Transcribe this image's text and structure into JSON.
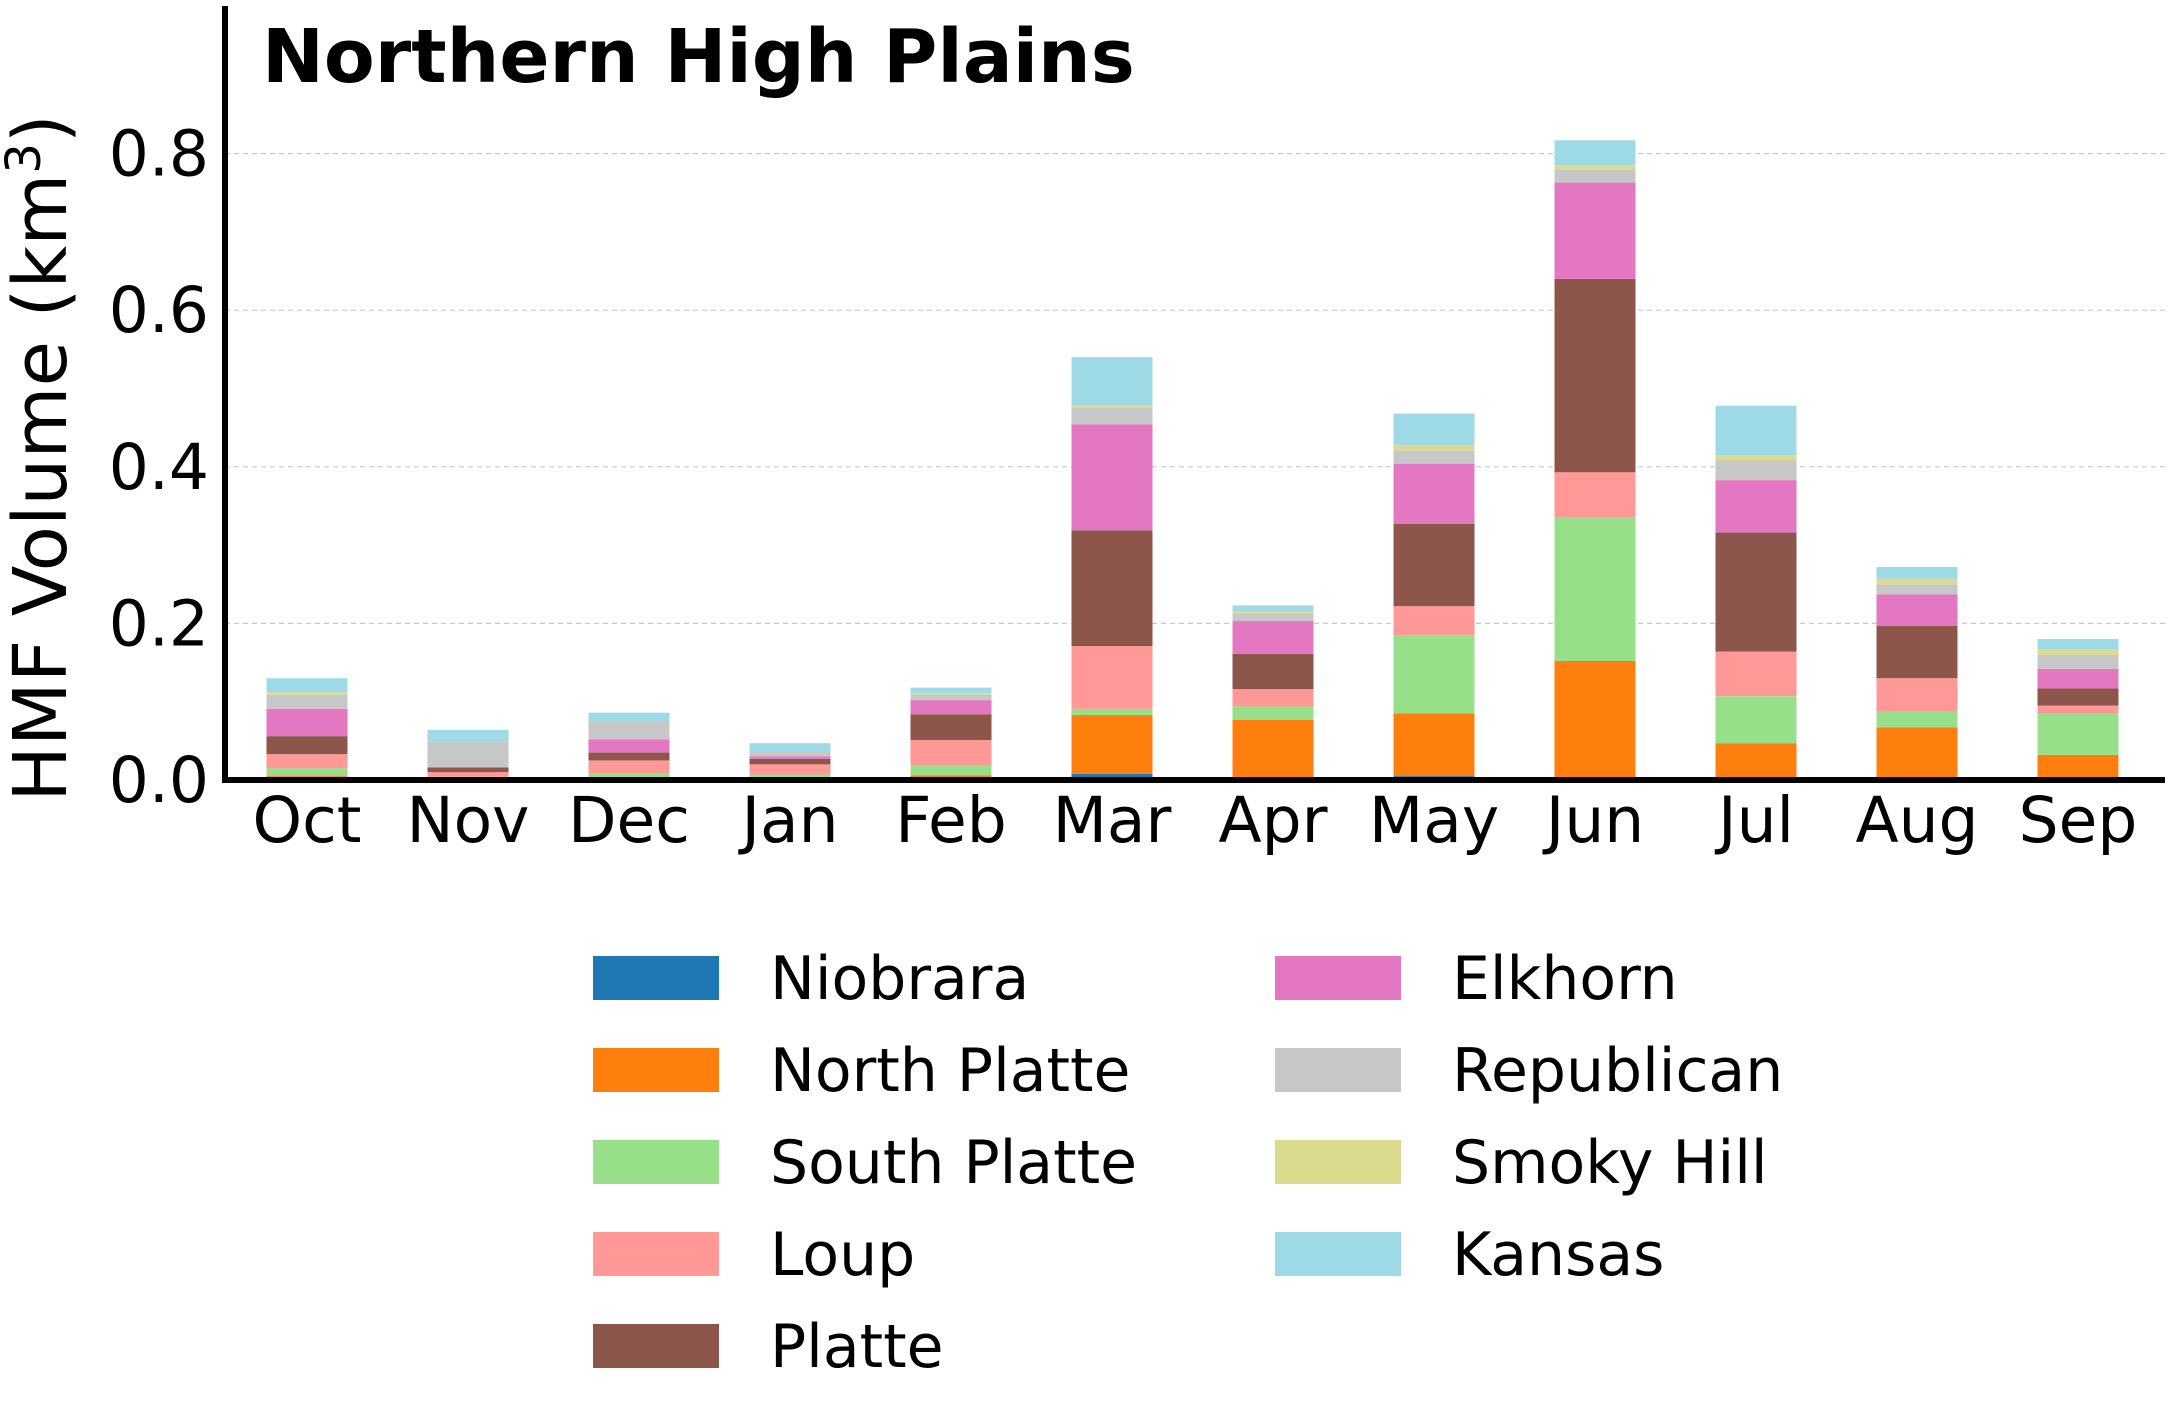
{
  "chart_data": {
    "type": "bar",
    "stacked": true,
    "title": "Northern High Plains",
    "xlabel": "",
    "ylabel": "HMF Volume (km",
    "ylabel_superscript": "3",
    "ylabel_suffix": ")",
    "ylim": [
      0,
      0.98
    ],
    "yticks": [
      "0.0",
      "0.2",
      "0.4",
      "0.6",
      "0.8"
    ],
    "ytick_values": [
      0,
      0.2,
      0.4,
      0.6,
      0.8
    ],
    "grid": "horizontal dashed",
    "legend_position": "bottom, two columns",
    "categories": [
      "Oct",
      "Nov",
      "Dec",
      "Jan",
      "Feb",
      "Mar",
      "Apr",
      "May",
      "Jun",
      "Jul",
      "Aug",
      "Sep"
    ],
    "series": [
      {
        "name": "Niobrara",
        "color": "#1f77b4",
        "values": [
          0.0,
          0.0,
          0.0,
          0.0,
          0.003,
          0.008,
          0.0,
          0.005,
          0.0,
          0.0,
          0.0,
          0.0
        ]
      },
      {
        "name": "North Platte",
        "color": "#ff7f0e",
        "values": [
          0.005,
          0.002,
          0.003,
          0.002,
          0.003,
          0.075,
          0.077,
          0.08,
          0.152,
          0.047,
          0.067,
          0.032
        ]
      },
      {
        "name": "South Platte",
        "color": "#98df8a",
        "values": [
          0.01,
          0.002,
          0.005,
          0.005,
          0.012,
          0.008,
          0.017,
          0.1,
          0.183,
          0.06,
          0.02,
          0.053
        ]
      },
      {
        "name": "Loup",
        "color": "#ff9896",
        "values": [
          0.018,
          0.006,
          0.017,
          0.013,
          0.033,
          0.08,
          0.022,
          0.037,
          0.058,
          0.057,
          0.043,
          0.01
        ]
      },
      {
        "name": "Platte",
        "color": "#8c564b",
        "values": [
          0.023,
          0.006,
          0.01,
          0.007,
          0.033,
          0.148,
          0.045,
          0.105,
          0.247,
          0.152,
          0.067,
          0.022
        ]
      },
      {
        "name": "Elkhorn",
        "color": "#e377c2",
        "values": [
          0.035,
          0.0,
          0.017,
          0.003,
          0.018,
          0.135,
          0.042,
          0.077,
          0.123,
          0.067,
          0.04,
          0.025
        ]
      },
      {
        "name": "Republican",
        "color": "#c7c7c7",
        "values": [
          0.018,
          0.033,
          0.022,
          0.007,
          0.007,
          0.022,
          0.01,
          0.017,
          0.017,
          0.025,
          0.013,
          0.018
        ]
      },
      {
        "name": "Smoky Hill",
        "color": "#dbdb8d",
        "values": [
          0.003,
          0.0,
          0.0,
          0.0,
          0.002,
          0.002,
          0.002,
          0.007,
          0.005,
          0.007,
          0.007,
          0.007
        ]
      },
      {
        "name": "Kansas",
        "color": "#9edae5",
        "values": [
          0.018,
          0.015,
          0.012,
          0.01,
          0.007,
          0.062,
          0.008,
          0.04,
          0.032,
          0.063,
          0.015,
          0.013
        ]
      }
    ]
  }
}
